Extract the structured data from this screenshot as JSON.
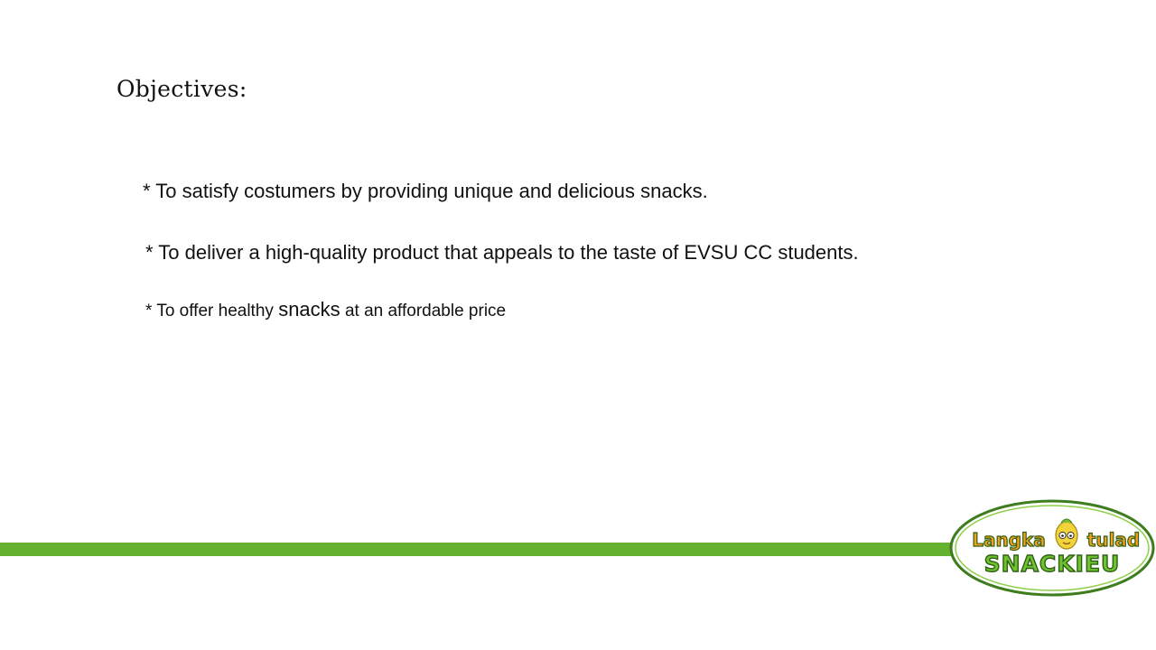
{
  "slide": {
    "title": "Objectives:",
    "objectives": [
      "* To satisfy costumers by providing unique and delicious snacks.",
      "* To deliver a high-quality product that appeals to the taste of EVSU CC students."
    ],
    "objective_3": {
      "prefix": "* To offer healthy ",
      "emphasis": "snacks",
      "suffix": " at an affordable price"
    }
  },
  "logo": {
    "top_left": "Langka",
    "top_right": "tulad",
    "bottom": "SNACKIEU",
    "mascot_icon": "jackfruit-mascot-icon"
  },
  "colors": {
    "accent_green": "#63b12f",
    "logo_orange": "#f6a11b",
    "logo_green": "#6cc22f",
    "logo_border": "#3e7d1e"
  }
}
